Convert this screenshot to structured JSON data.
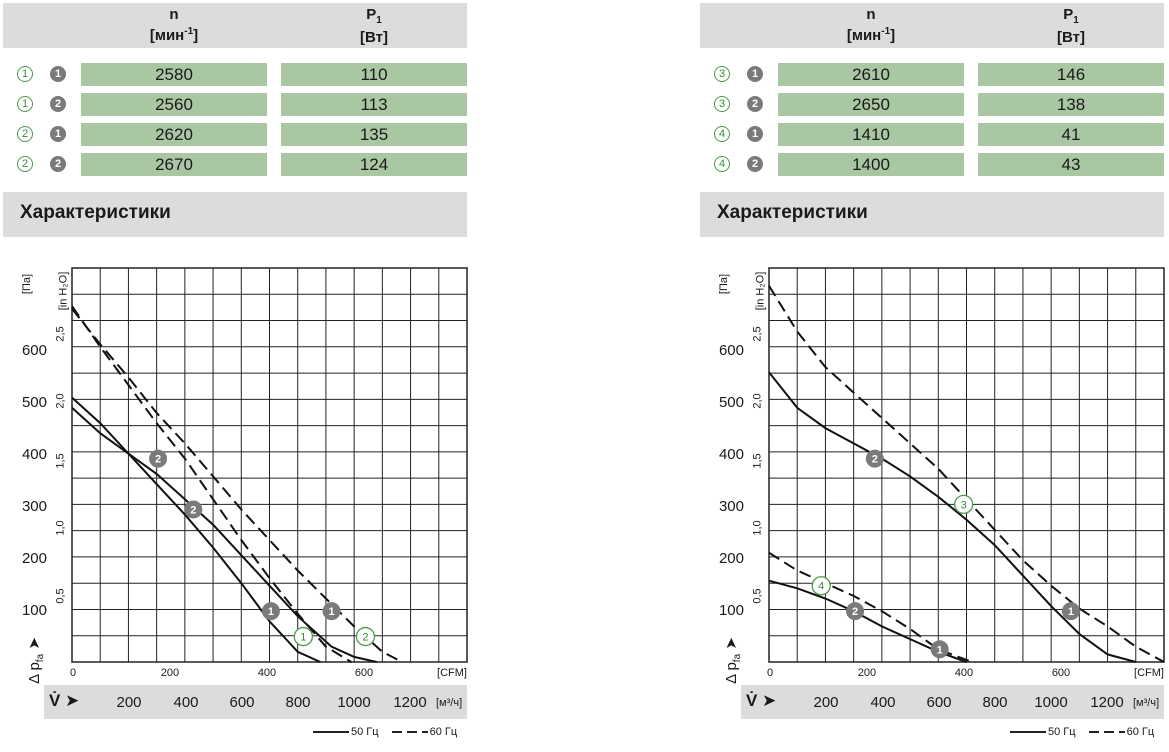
{
  "panels": [
    {
      "header": {
        "n_label": "n",
        "n_unit_open": "[мин",
        "n_unit_sup": "-1",
        "n_unit_close": "]",
        "p_label": "P",
        "p_sub": "1",
        "p_unit": "[Вт]"
      },
      "rows": [
        {
          "c1": "1",
          "c2": "1",
          "n": "2580",
          "p": "110"
        },
        {
          "c1": "1",
          "c2": "2",
          "n": "2560",
          "p": "113"
        },
        {
          "c1": "2",
          "c2": "1",
          "n": "2620",
          "p": "135"
        },
        {
          "c1": "2",
          "c2": "2",
          "n": "2670",
          "p": "124"
        }
      ],
      "section_title": "Характеристики"
    },
    {
      "header": {
        "n_label": "n",
        "n_unit_open": "[мин",
        "n_unit_sup": "-1",
        "n_unit_close": "]",
        "p_label": "P",
        "p_sub": "1",
        "p_unit": "[Вт]"
      },
      "rows": [
        {
          "c1": "3",
          "c2": "1",
          "n": "2610",
          "p": "146"
        },
        {
          "c1": "3",
          "c2": "2",
          "n": "2650",
          "p": "138"
        },
        {
          "c1": "4",
          "c2": "1",
          "n": "1410",
          "p": "41"
        },
        {
          "c1": "4",
          "c2": "2",
          "n": "1400",
          "p": "43"
        }
      ],
      "section_title": "Характеристики"
    }
  ],
  "axis_labels": {
    "pa_unit": "[Па]",
    "inh2o_unit": "[in H₂O]",
    "cfm_unit": "[CFM]",
    "m3h_unit": "[м³/ч]",
    "dp_label": "Δ p",
    "dp_sub": "fa",
    "v_symbol": "V̇ ➤",
    "legend_50": "50 Гц",
    "legend_60": "60 Гц"
  },
  "chart_data": [
    {
      "type": "line",
      "xlabel": "V̇ [м³/ч]",
      "ylabel": "Δ p_fa [Па]",
      "xlim": [
        0,
        1400
      ],
      "ylim": [
        0,
        775
      ],
      "x2_unit": "CFM",
      "y2_unit": "in H2O",
      "y_ticks": [
        100,
        200,
        300,
        400,
        500,
        600
      ],
      "y2_ticks": [
        "0,5",
        "1,0",
        "1,5",
        "2,0",
        "2,5"
      ],
      "x_ticks": [
        200,
        400,
        600,
        800,
        1000,
        1200
      ],
      "x2_ticks": [
        0,
        200,
        400,
        600
      ],
      "grid": true,
      "legend": "bottom-right",
      "series": [
        {
          "freq": "50 Гц",
          "point": "1",
          "x": [
            0,
            100,
            200,
            300,
            400,
            500,
            600,
            700,
            800,
            880
          ],
          "y": [
            520,
            470,
            410,
            350,
            290,
            225,
            155,
            80,
            20,
            0
          ]
        },
        {
          "freq": "50 Гц",
          "point": "2",
          "x": [
            0,
            100,
            200,
            300,
            400,
            500,
            600,
            700,
            800,
            920,
            1000,
            1080
          ],
          "y": [
            500,
            450,
            410,
            370,
            320,
            270,
            210,
            150,
            90,
            30,
            10,
            0
          ]
        },
        {
          "freq": "60 Гц",
          "point": "1",
          "x": [
            0,
            100,
            200,
            300,
            400,
            500,
            600,
            700,
            800,
            900,
            990
          ],
          "y": [
            700,
            620,
            545,
            470,
            400,
            320,
            240,
            165,
            95,
            30,
            0
          ]
        },
        {
          "freq": "60 Гц",
          "point": "2",
          "x": [
            0,
            100,
            200,
            300,
            400,
            500,
            600,
            700,
            800,
            900,
            1000,
            1100,
            1170
          ],
          "y": [
            695,
            625,
            560,
            490,
            430,
            365,
            300,
            240,
            180,
            125,
            70,
            20,
            0
          ]
        }
      ],
      "markers": [
        {
          "label": "2",
          "style": "filled",
          "x": 305,
          "y": 400
        },
        {
          "label": "2",
          "style": "filled",
          "x": 430,
          "y": 300
        },
        {
          "label": "1",
          "style": "filled",
          "x": 705,
          "y": 100
        },
        {
          "label": "1",
          "style": "filled",
          "x": 920,
          "y": 100
        },
        {
          "label": "1",
          "style": "open",
          "x": 820,
          "y": 50
        },
        {
          "label": "2",
          "style": "open",
          "x": 1040,
          "y": 50
        }
      ]
    },
    {
      "type": "line",
      "xlabel": "V̇ [м³/ч]",
      "ylabel": "Δ p_fa [Па]",
      "xlim": [
        0,
        1400
      ],
      "ylim": [
        0,
        775
      ],
      "x2_unit": "CFM",
      "y2_unit": "in H2O",
      "y_ticks": [
        100,
        200,
        300,
        400,
        500,
        600
      ],
      "y2_ticks": [
        "0,5",
        "1,0",
        "1,5",
        "2,0",
        "2,5"
      ],
      "x_ticks": [
        200,
        400,
        600,
        800,
        1000,
        1200
      ],
      "x2_ticks": [
        0,
        200,
        400,
        600
      ],
      "grid": true,
      "legend": "bottom-right",
      "series": [
        {
          "freq": "50 Гц",
          "point": "3",
          "x": [
            0,
            100,
            200,
            300,
            400,
            500,
            600,
            700,
            800,
            900,
            1000,
            1100,
            1200,
            1300
          ],
          "y": [
            570,
            500,
            460,
            430,
            400,
            365,
            325,
            280,
            230,
            170,
            110,
            55,
            15,
            0
          ]
        },
        {
          "freq": "60 Гц",
          "point": "3",
          "x": [
            0,
            100,
            200,
            300,
            400,
            500,
            600,
            700,
            800,
            900,
            1000,
            1100,
            1200,
            1300,
            1400
          ],
          "y": [
            740,
            650,
            580,
            530,
            480,
            430,
            380,
            320,
            260,
            200,
            150,
            105,
            70,
            30,
            0
          ]
        },
        {
          "freq": "50 Гц",
          "point": "4",
          "x": [
            0,
            100,
            200,
            300,
            400,
            500,
            600,
            700
          ],
          "y": [
            160,
            145,
            125,
            100,
            70,
            45,
            20,
            0
          ]
        },
        {
          "freq": "60 Гц",
          "point": "4",
          "x": [
            0,
            100,
            200,
            300,
            400,
            500,
            600,
            720
          ],
          "y": [
            215,
            180,
            155,
            130,
            100,
            65,
            25,
            0
          ]
        }
      ],
      "markers": [
        {
          "label": "2",
          "style": "filled",
          "x": 375,
          "y": 400
        },
        {
          "label": "3",
          "style": "open",
          "x": 690,
          "y": 310
        },
        {
          "label": "1",
          "style": "filled",
          "x": 1070,
          "y": 100
        },
        {
          "label": "4",
          "style": "open",
          "x": 185,
          "y": 150
        },
        {
          "label": "2",
          "style": "filled",
          "x": 305,
          "y": 100
        },
        {
          "label": "1",
          "style": "filled",
          "x": 605,
          "y": 25
        }
      ]
    }
  ]
}
